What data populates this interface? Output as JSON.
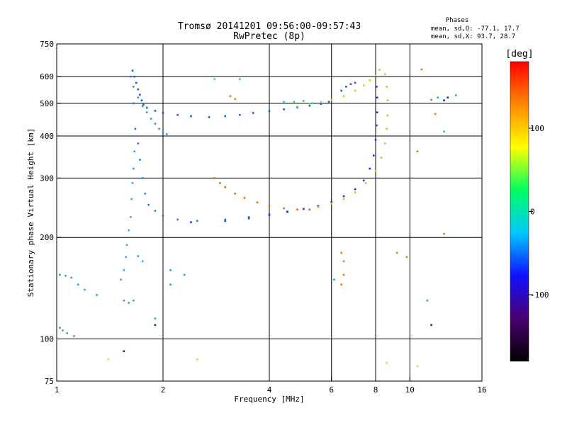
{
  "chart_data": {
    "type": "scatter",
    "title": "Tromsø 20141201 09:56:00-09:57:43",
    "subtitle": "RwPretec (8p)",
    "xlabel": "Frequency [MHz]",
    "ylabel": "Stationary phase Virtual Height [km]",
    "x_scale": "log",
    "y_scale": "log",
    "xlim": [
      1,
      16
    ],
    "ylim": [
      75,
      750
    ],
    "x_ticks": [
      1,
      2,
      4,
      6,
      8,
      10,
      16
    ],
    "x_tick_labels": [
      "1",
      "2",
      "4",
      "6",
      "8",
      "10",
      "16"
    ],
    "y_ticks": [
      75,
      100,
      200,
      300,
      400,
      500,
      600,
      750
    ],
    "y_tick_labels": [
      "75",
      "100",
      "200",
      "300",
      "400",
      "500",
      "600",
      "750"
    ],
    "grid": true,
    "stats": {
      "heading": "Phases",
      "o_line": "mean, sd,O: -77.1, 17.7",
      "x_line": "mean, sd,X:  93.7, 28.7"
    },
    "colorbar": {
      "label": "[deg]",
      "range": [
        -180,
        180
      ],
      "ticks": [
        100,
        0,
        -100
      ],
      "tick_labels": [
        "100",
        "0",
        "-100"
      ],
      "stops": [
        "#000000",
        "#4a0070",
        "#1010ff",
        "#00c8ff",
        "#00ff60",
        "#ffff00",
        "#ff8800",
        "#ff0000"
      ]
    },
    "series": [
      {
        "color": "#0b63d8",
        "points": [
          [
            1.64,
            625
          ],
          [
            1.66,
            600
          ],
          [
            1.68,
            575
          ],
          [
            1.7,
            550
          ],
          [
            1.72,
            530
          ],
          [
            1.74,
            510
          ],
          [
            1.76,
            495
          ],
          [
            1.8,
            485
          ],
          [
            1.9,
            475
          ],
          [
            2.0,
            468
          ],
          [
            2.2,
            462
          ],
          [
            2.4,
            458
          ],
          [
            2.7,
            455
          ],
          [
            3.0,
            458
          ],
          [
            3.3,
            462
          ],
          [
            3.6,
            468
          ],
          [
            4.0,
            474
          ],
          [
            4.4,
            480
          ],
          [
            4.8,
            486
          ],
          [
            5.2,
            492
          ],
          [
            5.6,
            498
          ],
          [
            5.9,
            505
          ]
        ]
      },
      {
        "color": "#3a8ee8",
        "points": [
          [
            1.65,
            560
          ],
          [
            1.7,
            520
          ],
          [
            1.75,
            490
          ],
          [
            1.8,
            470
          ],
          [
            1.85,
            450
          ],
          [
            1.9,
            435
          ],
          [
            1.95,
            420
          ],
          [
            2.0,
            410
          ],
          [
            2.05,
            405
          ]
        ]
      },
      {
        "color": "#2a7de0",
        "points": [
          [
            1.62,
            600
          ],
          [
            1.65,
            500
          ],
          [
            1.67,
            420
          ],
          [
            1.7,
            380
          ],
          [
            1.72,
            340
          ],
          [
            1.75,
            300
          ],
          [
            1.78,
            270
          ],
          [
            1.82,
            250
          ],
          [
            1.9,
            240
          ],
          [
            2.0,
            232
          ],
          [
            2.2,
            226
          ],
          [
            2.5,
            224
          ],
          [
            3.0,
            226
          ],
          [
            3.5,
            230
          ],
          [
            4.0,
            235
          ],
          [
            4.5,
            239
          ],
          [
            5.0,
            243
          ],
          [
            5.5,
            247
          ]
        ]
      },
      {
        "color": "#1a3ae0",
        "points": [
          [
            2.4,
            222
          ],
          [
            3.0,
            224
          ],
          [
            3.5,
            228
          ],
          [
            4.0,
            233
          ],
          [
            4.5,
            238
          ],
          [
            5.0,
            243
          ],
          [
            5.5,
            248
          ],
          [
            6.0,
            255
          ],
          [
            6.5,
            265
          ],
          [
            7.0,
            278
          ],
          [
            7.4,
            295
          ],
          [
            7.7,
            320
          ],
          [
            7.9,
            350
          ],
          [
            8.0,
            390
          ],
          [
            8.05,
            430
          ],
          [
            8.08,
            470
          ],
          [
            8.08,
            520
          ],
          [
            8.05,
            560
          ]
        ]
      },
      {
        "color": "#3aa0ff",
        "points": [
          [
            1.52,
            150
          ],
          [
            1.55,
            160
          ],
          [
            1.57,
            175
          ],
          [
            1.58,
            190
          ],
          [
            1.6,
            210
          ],
          [
            1.62,
            230
          ],
          [
            1.63,
            260
          ],
          [
            1.64,
            290
          ],
          [
            1.65,
            320
          ],
          [
            1.66,
            360
          ]
        ]
      },
      {
        "color": "#e06818",
        "points": [
          [
            2.8,
            300
          ],
          [
            2.9,
            290
          ],
          [
            3.0,
            282
          ],
          [
            3.2,
            270
          ],
          [
            3.4,
            262
          ],
          [
            3.7,
            254
          ],
          [
            4.0,
            248
          ],
          [
            4.4,
            244
          ],
          [
            4.8,
            242
          ],
          [
            5.2,
            242
          ]
        ]
      },
      {
        "color": "#9fdc20",
        "points": [
          [
            5.5,
            246
          ],
          [
            6.0,
            252
          ],
          [
            6.5,
            260
          ],
          [
            7.0,
            272
          ],
          [
            7.5,
            290
          ],
          [
            8.0,
            315
          ],
          [
            8.3,
            345
          ],
          [
            8.5,
            380
          ],
          [
            8.6,
            420
          ],
          [
            8.65,
            460
          ],
          [
            8.65,
            510
          ],
          [
            8.6,
            560
          ],
          [
            8.5,
            610
          ]
        ]
      },
      {
        "color": "#a8e028",
        "points": [
          [
            4.8,
            490
          ],
          [
            5.2,
            497
          ],
          [
            5.6,
            505
          ],
          [
            6.0,
            512
          ],
          [
            6.5,
            525
          ],
          [
            7.0,
            545
          ],
          [
            7.4,
            565
          ],
          [
            7.7,
            585
          ],
          [
            8.0,
            605
          ],
          [
            8.2,
            628
          ]
        ]
      },
      {
        "color": "#2a56e0",
        "points": [
          [
            6.4,
            545
          ],
          [
            6.6,
            560
          ],
          [
            6.8,
            570
          ],
          [
            7.0,
            575
          ]
        ]
      },
      {
        "color": "#3a9ae8",
        "points": [
          [
            1.02,
            108
          ],
          [
            1.04,
            106
          ],
          [
            1.07,
            104
          ],
          [
            1.12,
            102
          ],
          [
            1.02,
            155
          ],
          [
            1.06,
            154
          ],
          [
            1.1,
            152
          ],
          [
            1.55,
            130
          ],
          [
            1.6,
            128
          ],
          [
            1.65,
            130
          ]
        ]
      },
      {
        "color": "#28c8e8",
        "points": [
          [
            4.4,
            505
          ],
          [
            4.7,
            505
          ],
          [
            5.0,
            508
          ],
          [
            5.3,
            500
          ],
          [
            3.3,
            590
          ],
          [
            2.8,
            590
          ]
        ]
      },
      {
        "color": "#e08020",
        "points": [
          [
            3.1,
            525
          ],
          [
            3.2,
            515
          ],
          [
            6.4,
            180
          ],
          [
            6.5,
            170
          ],
          [
            6.5,
            155
          ],
          [
            9.2,
            180
          ],
          [
            10.5,
            360
          ],
          [
            11.8,
            465
          ],
          [
            12.5,
            205
          ],
          [
            9.8,
            175
          ],
          [
            6.4,
            145
          ],
          [
            10.8,
            630
          ]
        ]
      },
      {
        "color": "#f0d040",
        "points": [
          [
            1.4,
            87
          ],
          [
            2.5,
            87
          ],
          [
            8.6,
            85
          ],
          [
            10.5,
            83
          ]
        ]
      },
      {
        "color": "#20a8e0",
        "points": [
          [
            1.7,
            176
          ],
          [
            1.75,
            170
          ],
          [
            2.1,
            160
          ],
          [
            2.3,
            155
          ],
          [
            2.1,
            145
          ],
          [
            1.9,
            115
          ],
          [
            1.3,
            135
          ],
          [
            1.2,
            140
          ],
          [
            1.15,
            145
          ],
          [
            6.1,
            150
          ],
          [
            11.2,
            130
          ],
          [
            11.5,
            512
          ],
          [
            12.5,
            412
          ],
          [
            13.5,
            528
          ],
          [
            12.0,
            520
          ]
        ]
      },
      {
        "color": "#1428c0",
        "points": [
          [
            1.55,
            92
          ],
          [
            1.9,
            110
          ],
          [
            11.5,
            110
          ],
          [
            12.5,
            510
          ],
          [
            12.8,
            520
          ]
        ]
      }
    ]
  }
}
